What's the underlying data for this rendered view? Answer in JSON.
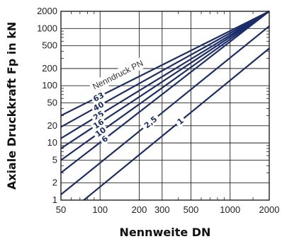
{
  "chart_data": {
    "type": "line",
    "xscale": "log",
    "yscale": "log",
    "xlim": [
      50,
      2000
    ],
    "ylim": [
      1,
      2000
    ],
    "xlabel": "Nennweite DN",
    "ylabel": "Axiale Druckkraft Fp in kN",
    "xticks": [
      50,
      100,
      200,
      300,
      500,
      1000,
      2000
    ],
    "xtick_labels": [
      "50",
      "100",
      "200",
      "300",
      "500",
      "1000",
      "2000"
    ],
    "yticks": [
      1,
      2,
      5,
      10,
      20,
      50,
      100,
      200,
      500,
      1000,
      2000
    ],
    "ytick_labels": [
      "1",
      "2",
      "5",
      "10",
      "20",
      "50",
      "100",
      "200",
      "500",
      "1000",
      "2000"
    ],
    "grid": true,
    "annotation": "Nenndruck PN",
    "line_color": "#1c2d6b",
    "series": [
      {
        "name": "63",
        "x": [
          50,
          2000
        ],
        "y": [
          30,
          2000
        ]
      },
      {
        "name": "40",
        "x": [
          50,
          2000
        ],
        "y": [
          19,
          2000
        ]
      },
      {
        "name": "25",
        "x": [
          50,
          2000
        ],
        "y": [
          12,
          2000
        ]
      },
      {
        "name": "16",
        "x": [
          50,
          2000
        ],
        "y": [
          8,
          2000
        ]
      },
      {
        "name": "10",
        "x": [
          50,
          2000
        ],
        "y": [
          5,
          2000
        ]
      },
      {
        "name": "6",
        "x": [
          50,
          2000
        ],
        "y": [
          3,
          2000
        ]
      },
      {
        "name": "2,5",
        "x": [
          50,
          2000
        ],
        "y": [
          1.25,
          1100
        ]
      },
      {
        "name": "1",
        "x": [
          75,
          2000
        ],
        "y": [
          1,
          450
        ]
      }
    ]
  }
}
